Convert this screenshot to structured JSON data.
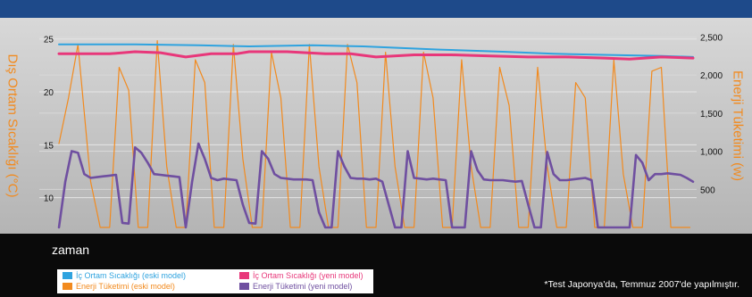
{
  "chart_data": {
    "type": "line",
    "ylabel_left": "Dış Ortam Sıcaklığı (°C)",
    "ylabel_right": "Enerji Tüketimi (w)",
    "xlabel": "zaman",
    "y_left_ticks": [
      "25",
      "20",
      "15",
      "10"
    ],
    "y_left_values": [
      25,
      20,
      15,
      10
    ],
    "ylim_left": [
      6.6,
      27
    ],
    "y_right_ticks": [
      "2,500",
      "2,000",
      "1,500",
      "1,000",
      "500"
    ],
    "y_right_values": [
      2500,
      2000,
      1500,
      1000,
      500
    ],
    "ylim_right": [
      0,
      2750
    ],
    "x_range": [
      0,
      100
    ],
    "grid": true,
    "series": [
      {
        "name": "İç Ortam Sıcaklığı (eski model)",
        "color": "#2fa3df",
        "axis": "left",
        "x": [
          0,
          12,
          22,
          30,
          40,
          48,
          60,
          70,
          78,
          86,
          95,
          100
        ],
        "y": [
          24.5,
          24.5,
          24.4,
          24.3,
          24.4,
          24.3,
          24.0,
          23.8,
          23.6,
          23.5,
          23.4,
          23.3
        ]
      },
      {
        "name": "İç Ortam Sıcaklığı (yeni model)",
        "color": "#e8377a",
        "axis": "left",
        "x": [
          0,
          8,
          12,
          16,
          20,
          24,
          28,
          30,
          36,
          42,
          46,
          50,
          56,
          62,
          68,
          74,
          80,
          86,
          90,
          95,
          100
        ],
        "y": [
          23.6,
          23.6,
          23.8,
          23.7,
          23.3,
          23.6,
          23.6,
          23.8,
          23.8,
          23.6,
          23.6,
          23.3,
          23.5,
          23.5,
          23.4,
          23.3,
          23.3,
          23.2,
          23.1,
          23.3,
          23.2
        ]
      },
      {
        "name": "Enerji Tüketimi (eski model)",
        "color": "#f28a1e",
        "axis": "right",
        "x": [
          0,
          1.5,
          3,
          5,
          6.5,
          8,
          9.5,
          11,
          12.5,
          14,
          15.5,
          17,
          18.5,
          20,
          21.5,
          23,
          24.5,
          26,
          27.5,
          29,
          30.5,
          32,
          33.5,
          35,
          36.5,
          38,
          39.5,
          41,
          42.5,
          44,
          45.5,
          47,
          48.5,
          50,
          51.5,
          53,
          54.5,
          56,
          57.5,
          59,
          60.5,
          62,
          63.5,
          65,
          66.5,
          68,
          69.5,
          71,
          72.5,
          74,
          75.5,
          77,
          78.5,
          80,
          81.5,
          83,
          84.5,
          86,
          87.5,
          89,
          90.5,
          92,
          93.5,
          95,
          96.5,
          98,
          99.5
        ],
        "y": [
          1100,
          1700,
          2400,
          600,
          0,
          0,
          2100,
          1800,
          0,
          0,
          2450,
          800,
          0,
          0,
          2200,
          1900,
          0,
          0,
          2400,
          900,
          0,
          0,
          2300,
          1700,
          0,
          0,
          2400,
          800,
          0,
          0,
          2400,
          1900,
          0,
          0,
          2300,
          800,
          0,
          0,
          2300,
          1700,
          0,
          0,
          2200,
          800,
          0,
          0,
          2100,
          1600,
          0,
          0,
          2100,
          800,
          0,
          0,
          1900,
          1700,
          0,
          0,
          2200,
          700,
          0,
          0,
          2050,
          2100,
          0,
          0,
          0
        ]
      },
      {
        "name": "Enerji Tüketimi (yeni model)",
        "color": "#6f4fa0",
        "axis": "right",
        "x": [
          0,
          1,
          2,
          3,
          4,
          5,
          6,
          7,
          8,
          9,
          10,
          11,
          12,
          13,
          14,
          15,
          16,
          17,
          18,
          19,
          20,
          21,
          22,
          23,
          24,
          25,
          26,
          27,
          28,
          29,
          30,
          31,
          32,
          33,
          34,
          35,
          36,
          37,
          38,
          39,
          40,
          41,
          42,
          43,
          44,
          45,
          46,
          47,
          48,
          49,
          50,
          51,
          52,
          53,
          54,
          55,
          56,
          57,
          58,
          59,
          60,
          61,
          62,
          63,
          64,
          65,
          66,
          67,
          68,
          69,
          70,
          71,
          72,
          73,
          74,
          75,
          76,
          77,
          78,
          79,
          80,
          81,
          82,
          83,
          84,
          85,
          86,
          87,
          88,
          89,
          90,
          91,
          92,
          93,
          94,
          95,
          96,
          97,
          98,
          99,
          100
        ],
        "y": [
          0,
          600,
          1000,
          980,
          700,
          650,
          660,
          670,
          680,
          690,
          60,
          50,
          1050,
          980,
          850,
          700,
          690,
          680,
          670,
          660,
          0,
          600,
          1100,
          900,
          650,
          620,
          640,
          630,
          620,
          300,
          60,
          50,
          1000,
          900,
          700,
          650,
          640,
          630,
          630,
          630,
          620,
          200,
          0,
          0,
          1000,
          800,
          650,
          640,
          640,
          630,
          640,
          600,
          300,
          0,
          0,
          1000,
          650,
          640,
          630,
          640,
          630,
          620,
          0,
          0,
          0,
          1000,
          750,
          630,
          620,
          620,
          620,
          610,
          600,
          610,
          300,
          0,
          0,
          990,
          700,
          620,
          620,
          630,
          640,
          650,
          620,
          0,
          0,
          0,
          0,
          0,
          0,
          950,
          850,
          620,
          700,
          700,
          710,
          700,
          690,
          650,
          600
        ]
      }
    ],
    "annotation": "*Test Japonya'da, Temmuz 2007'de yapılmıştır."
  },
  "legend": [
    {
      "label": "İç Ortam Sıcaklığı (eski model)",
      "color": "#2fa3df",
      "text_color": "#2fa3df"
    },
    {
      "label": "Enerji Tüketimi (eski model)",
      "color": "#f28a1e",
      "text_color": "#f28a1e"
    },
    {
      "label": "İç Ortam Sıcaklığı (yeni model)",
      "color": "#e8377a",
      "text_color": "#e8377a"
    },
    {
      "label": "Enerji Tüketimi (yeni model)",
      "color": "#6f4fa0",
      "text_color": "#6f4fa0"
    }
  ]
}
